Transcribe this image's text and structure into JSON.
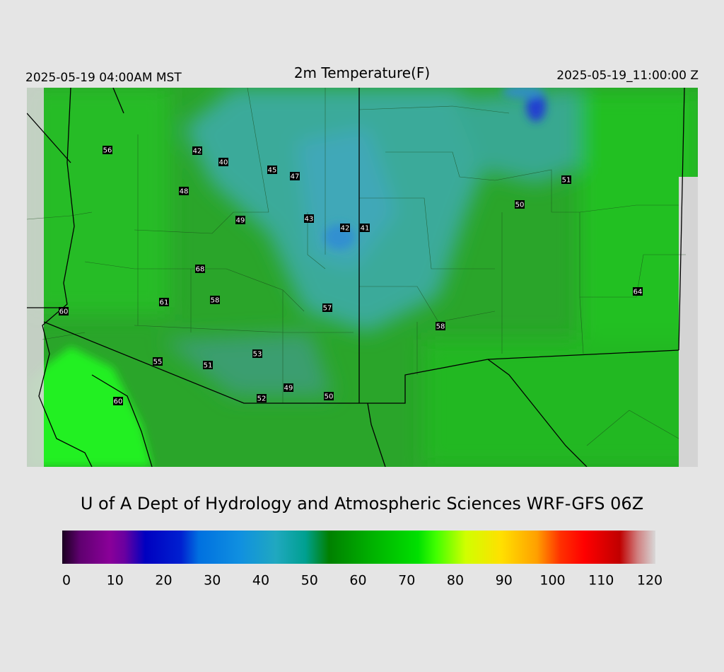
{
  "header": {
    "left": "2025-05-19 04:00AM MST",
    "title": "2m Temperature(F)",
    "right": "2025-05-19_11:00:00 Z"
  },
  "stations": [
    56,
    42,
    40,
    45,
    47,
    48,
    49,
    43,
    42,
    41,
    50,
    51,
    68,
    61,
    58,
    57,
    58,
    64,
    60,
    55,
    51,
    53,
    49,
    52,
    50,
    60
  ],
  "footer": "U of A Dept of Hydrology and Atmospheric Sciences WRF-GFS 06Z",
  "colorbar": {
    "ticks": [
      0,
      10,
      20,
      30,
      40,
      50,
      60,
      70,
      80,
      90,
      100,
      110,
      120
    ]
  }
}
